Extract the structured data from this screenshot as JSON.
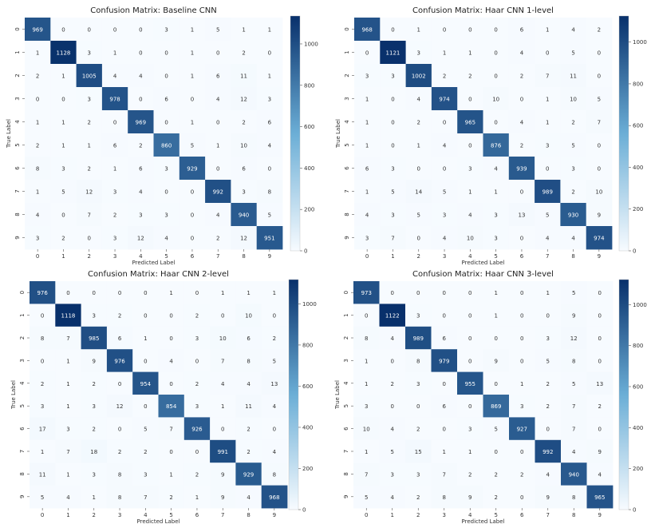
{
  "colormap": {
    "low": "#f7fbff",
    "mid": "#6baed6",
    "high": "#08306b"
  },
  "chart_data": [
    {
      "type": "heatmap",
      "title": "Confusion Matrix: Baseline CNN",
      "xlabel": "Predicted Label",
      "ylabel": "True Label",
      "x_ticks": [
        "0",
        "1",
        "2",
        "3",
        "4",
        "5",
        "6",
        "7",
        "8",
        "9"
      ],
      "y_ticks": [
        "0",
        "1",
        "2",
        "3",
        "4",
        "5",
        "6",
        "7",
        "8",
        "9"
      ],
      "colorbar_ticks": [
        "0",
        "200",
        "400",
        "600",
        "800",
        "1000"
      ],
      "colorbar_range": [
        0,
        1135
      ],
      "matrix": [
        [
          969,
          0,
          0,
          0,
          0,
          3,
          1,
          5,
          1,
          1
        ],
        [
          1,
          1128,
          3,
          1,
          0,
          0,
          1,
          0,
          2,
          0
        ],
        [
          2,
          1,
          1005,
          4,
          4,
          0,
          1,
          6,
          11,
          1
        ],
        [
          0,
          0,
          3,
          978,
          0,
          6,
          0,
          4,
          12,
          3
        ],
        [
          1,
          1,
          2,
          0,
          969,
          0,
          1,
          0,
          2,
          6
        ],
        [
          2,
          1,
          1,
          6,
          2,
          860,
          5,
          1,
          10,
          4
        ],
        [
          8,
          3,
          2,
          1,
          6,
          3,
          929,
          0,
          6,
          0
        ],
        [
          1,
          5,
          12,
          3,
          4,
          0,
          0,
          992,
          3,
          8
        ],
        [
          4,
          0,
          7,
          2,
          3,
          3,
          0,
          4,
          940,
          5
        ],
        [
          3,
          2,
          0,
          3,
          12,
          4,
          0,
          2,
          12,
          951
        ]
      ]
    },
    {
      "type": "heatmap",
      "title": "Confusion Matrix: Haar CNN 1-level",
      "xlabel": "Predicted Label",
      "ylabel": "True Label",
      "x_ticks": [
        "0",
        "1",
        "2",
        "3",
        "4",
        "5",
        "6",
        "7",
        "8",
        "9"
      ],
      "y_ticks": [
        "0",
        "1",
        "2",
        "3",
        "4",
        "5",
        "6",
        "7",
        "8",
        "9"
      ],
      "colorbar_ticks": [
        "0",
        "200",
        "400",
        "600",
        "800",
        "1000"
      ],
      "colorbar_range": [
        0,
        1125
      ],
      "matrix": [
        [
          968,
          0,
          1,
          0,
          0,
          0,
          6,
          1,
          4,
          2
        ],
        [
          0,
          1121,
          3,
          1,
          1,
          0,
          4,
          0,
          5,
          0
        ],
        [
          3,
          3,
          1002,
          2,
          2,
          0,
          2,
          7,
          11,
          0
        ],
        [
          1,
          0,
          4,
          974,
          0,
          10,
          0,
          1,
          10,
          5
        ],
        [
          1,
          0,
          2,
          0,
          965,
          0,
          4,
          1,
          2,
          7
        ],
        [
          1,
          0,
          1,
          4,
          0,
          876,
          2,
          3,
          5,
          0
        ],
        [
          6,
          3,
          0,
          0,
          3,
          4,
          939,
          0,
          3,
          0
        ],
        [
          1,
          5,
          14,
          5,
          1,
          1,
          0,
          989,
          2,
          10
        ],
        [
          4,
          3,
          5,
          3,
          4,
          3,
          13,
          5,
          930,
          9
        ],
        [
          3,
          7,
          0,
          4,
          10,
          3,
          0,
          4,
          4,
          974
        ]
      ]
    },
    {
      "type": "heatmap",
      "title": "Confusion Matrix: Haar CNN 2-level",
      "xlabel": "Predicted Label",
      "ylabel": "True Label",
      "x_ticks": [
        "0",
        "1",
        "2",
        "3",
        "4",
        "5",
        "6",
        "7",
        "8",
        "9"
      ],
      "y_ticks": [
        "0",
        "1",
        "2",
        "3",
        "4",
        "5",
        "6",
        "7",
        "8",
        "9"
      ],
      "colorbar_ticks": [
        "0",
        "200",
        "400",
        "600",
        "800",
        "1000"
      ],
      "colorbar_range": [
        0,
        1118
      ],
      "matrix": [
        [
          976,
          0,
          0,
          0,
          0,
          1,
          0,
          1,
          1,
          1
        ],
        [
          0,
          1118,
          3,
          2,
          0,
          0,
          2,
          0,
          10,
          0
        ],
        [
          8,
          7,
          985,
          6,
          1,
          0,
          3,
          10,
          6,
          2
        ],
        [
          0,
          1,
          9,
          976,
          0,
          4,
          0,
          7,
          8,
          5
        ],
        [
          2,
          1,
          2,
          0,
          954,
          0,
          2,
          4,
          4,
          13
        ],
        [
          3,
          1,
          3,
          12,
          0,
          854,
          3,
          1,
          11,
          4
        ],
        [
          17,
          3,
          2,
          0,
          5,
          7,
          926,
          0,
          2,
          0
        ],
        [
          1,
          7,
          18,
          2,
          2,
          0,
          0,
          991,
          2,
          4
        ],
        [
          11,
          1,
          3,
          8,
          3,
          1,
          2,
          9,
          929,
          8
        ],
        [
          5,
          4,
          1,
          8,
          7,
          2,
          1,
          9,
          4,
          968
        ]
      ]
    },
    {
      "type": "heatmap",
      "title": "Confusion Matrix: Haar CNN 3-level",
      "xlabel": "Predicted Label",
      "ylabel": "True Label",
      "x_ticks": [
        "0",
        "1",
        "2",
        "3",
        "4",
        "5",
        "6",
        "7",
        "8",
        "9"
      ],
      "y_ticks": [
        "0",
        "1",
        "2",
        "3",
        "4",
        "5",
        "6",
        "7",
        "8",
        "9"
      ],
      "colorbar_ticks": [
        "0",
        "200",
        "400",
        "600",
        "800",
        "1000"
      ],
      "colorbar_range": [
        0,
        1122
      ],
      "matrix": [
        [
          973,
          0,
          0,
          0,
          0,
          1,
          0,
          1,
          5,
          0
        ],
        [
          0,
          1122,
          3,
          0,
          0,
          1,
          0,
          0,
          9,
          0
        ],
        [
          8,
          4,
          989,
          6,
          0,
          0,
          0,
          3,
          12,
          0
        ],
        [
          1,
          0,
          8,
          979,
          0,
          9,
          0,
          5,
          8,
          0
        ],
        [
          1,
          2,
          3,
          0,
          955,
          0,
          1,
          2,
          5,
          13
        ],
        [
          3,
          0,
          0,
          6,
          0,
          869,
          3,
          2,
          7,
          2
        ],
        [
          10,
          4,
          2,
          0,
          3,
          5,
          927,
          0,
          7,
          0
        ],
        [
          1,
          5,
          15,
          1,
          1,
          0,
          0,
          992,
          4,
          9
        ],
        [
          7,
          3,
          3,
          7,
          2,
          2,
          2,
          4,
          940,
          4
        ],
        [
          5,
          4,
          2,
          8,
          9,
          2,
          0,
          9,
          8,
          965
        ]
      ]
    }
  ]
}
